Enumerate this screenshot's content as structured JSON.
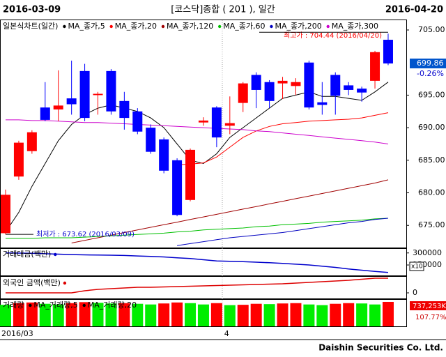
{
  "header": {
    "left": "2016-03-09",
    "title": "[코스닥]종합 ( 201 ), 일간",
    "right": "2016-04-20"
  },
  "footer": "Daishin Securities Co. Ltd.",
  "chart_data": [
    {
      "type": "candlestick",
      "title": "일본식차트(일간)",
      "categories": [
        "2016/03",
        null,
        null,
        null,
        null,
        null,
        null,
        null,
        null,
        null,
        null,
        null,
        null,
        null,
        null,
        null,
        null,
        "4",
        null,
        null,
        null,
        null,
        null,
        null,
        null,
        null,
        null,
        null,
        null,
        null
      ],
      "open": [
        673.8,
        682.5,
        686.4,
        693.1,
        692.8,
        694.5,
        698.7,
        695.0,
        698.7,
        694.1,
        692.5,
        690.0,
        688.2,
        685.0,
        678.9,
        690.8,
        693.1,
        690.3,
        693.8,
        698.1,
        697.0,
        696.8,
        696.4,
        700.0,
        693.9,
        698.1,
        696.5,
        696.0,
        697.2,
        703.5
      ],
      "high": [
        680.5,
        688.0,
        689.6,
        697.0,
        698.8,
        700.3,
        699.8,
        695.5,
        699.0,
        695.5,
        693.0,
        690.5,
        688.5,
        685.3,
        686.8,
        691.6,
        693.3,
        694.8,
        697.0,
        698.5,
        697.3,
        697.8,
        697.6,
        700.3,
        697.0,
        698.5,
        697.0,
        696.3,
        701.8,
        704.44
      ],
      "low": [
        673.62,
        682.0,
        686.0,
        691.0,
        691.0,
        692.0,
        691.0,
        692.0,
        692.0,
        689.7,
        689.0,
        686.0,
        683.0,
        676.4,
        678.7,
        690.3,
        687.0,
        689.0,
        692.4,
        693.0,
        693.0,
        694.4,
        695.0,
        692.8,
        692.0,
        692.0,
        695.0,
        694.0,
        696.0,
        699.6
      ],
      "close": [
        679.7,
        687.7,
        689.3,
        691.2,
        693.4,
        693.6,
        691.5,
        695.2,
        692.5,
        691.5,
        689.4,
        686.3,
        683.4,
        676.6,
        686.6,
        691.1,
        688.5,
        690.7,
        696.8,
        695.8,
        694.1,
        697.2,
        697.0,
        693.1,
        693.5,
        694.9,
        695.8,
        695.4,
        701.6,
        699.86
      ],
      "up_color": "#ff0000",
      "down_color": "#0000ff",
      "ylim": [
        671.6,
        706.5
      ],
      "yticks": [
        {
          "value": 675,
          "label": "675.00"
        },
        {
          "value": 680,
          "label": "680.00"
        },
        {
          "value": 685,
          "label": "685.00"
        },
        {
          "value": 690,
          "label": "690.00"
        },
        {
          "value": 695,
          "label": "695.00"
        },
        {
          "value": 705,
          "label": "705.00"
        }
      ],
      "series": [
        {
          "name": "MA_종가,5",
          "color": "#000000",
          "values": [
            674,
            677,
            681,
            684.5,
            688,
            690.5,
            692,
            693,
            693.5,
            693,
            692.5,
            691.5,
            690,
            687.5,
            685,
            684.5,
            686,
            688.5,
            690,
            691.5,
            693,
            694.5,
            695,
            695.5,
            694.8,
            694.8,
            694.5,
            694.2,
            695.5,
            697
          ]
        },
        {
          "name": "MA_종가,20",
          "color": "#ff0000",
          "values": [
            null,
            null,
            null,
            null,
            null,
            null,
            null,
            null,
            null,
            null,
            null,
            null,
            null,
            684.3,
            684.4,
            684.6,
            685.5,
            687,
            688.5,
            689.5,
            690.2,
            690.6,
            690.8,
            691.0,
            691.1,
            691.2,
            691.3,
            691.5,
            691.9,
            692.3
          ]
        },
        {
          "name": "MA_종가,120",
          "color": "#a00000",
          "values": [
            null,
            null,
            null,
            null,
            null,
            672.3,
            672.7,
            673.1,
            673.5,
            673.9,
            674.3,
            674.7,
            675.1,
            675.5,
            675.9,
            676.3,
            676.7,
            677.1,
            677.5,
            677.9,
            678.3,
            678.7,
            679.1,
            679.5,
            679.9,
            680.3,
            680.7,
            681.1,
            681.5,
            682.0
          ]
        },
        {
          "name": "MA_종가,60",
          "color": "#00c000",
          "values": [
            673.0,
            673.0,
            673.0,
            673.1,
            673.1,
            673.1,
            673.2,
            673.3,
            673.4,
            673.5,
            673.6,
            673.7,
            673.8,
            674.0,
            674.1,
            674.3,
            674.4,
            674.5,
            674.6,
            674.8,
            674.9,
            675.1,
            675.2,
            675.3,
            675.5,
            675.6,
            675.7,
            675.8,
            676.0,
            676.1
          ]
        },
        {
          "name": "MA_종가,200",
          "color": "#0000c0",
          "values": [
            null,
            null,
            null,
            null,
            null,
            null,
            null,
            null,
            null,
            null,
            null,
            null,
            null,
            671.9,
            672.2,
            672.5,
            672.8,
            673.1,
            673.3,
            673.5,
            673.7,
            673.9,
            674.2,
            674.5,
            674.8,
            675.1,
            675.4,
            675.6,
            675.9,
            676.1
          ]
        },
        {
          "name": "MA_종가,300",
          "color": "#cc00cc",
          "values": [
            691.2,
            691.2,
            691.1,
            691.1,
            691.0,
            690.9,
            690.8,
            690.8,
            690.7,
            690.6,
            690.5,
            690.4,
            690.3,
            690.2,
            690.1,
            690.0,
            689.9,
            689.8,
            689.7,
            689.5,
            689.4,
            689.2,
            689.0,
            688.8,
            688.6,
            688.4,
            688.2,
            688.0,
            687.8,
            687.5
          ]
        }
      ],
      "high_note": "최고가 : 704.44 (2016/04/20)",
      "low_note": "최저가 : 673.62 (2016/03/09)",
      "last_price": {
        "value": 699.86,
        "label": "699.86"
      },
      "change": "-0.26%"
    },
    {
      "type": "line",
      "title": "거래대금(백만)",
      "unit_label": "x10",
      "ylim": [
        20000,
        350000
      ],
      "yticks": [
        300000,
        150000
      ],
      "series": [
        {
          "color": "#0000cc",
          "values": [
            300000,
            298000,
            295000,
            290000,
            285000,
            280000,
            276000,
            274000,
            272000,
            268000,
            262000,
            256000,
            250000,
            240000,
            230000,
            215000,
            200000,
            196000,
            192000,
            185000,
            178000,
            170000,
            160000,
            150000,
            135000,
            120000,
            100000,
            85000,
            70000,
            57000
          ]
        }
      ]
    },
    {
      "type": "line",
      "title": "외국인 금액(백만)",
      "ylim": [
        -8000,
        22000
      ],
      "yticks": [
        0
      ],
      "series": [
        {
          "color": "#dd0000",
          "values": [
            0,
            0,
            0,
            0,
            0,
            0,
            3000,
            5000,
            6000,
            7000,
            8000,
            8000,
            8500,
            9000,
            9500,
            10000,
            10500,
            11000,
            11500,
            12000,
            12500,
            13000,
            14000,
            15000,
            16000,
            17000,
            18000,
            19500,
            21000,
            21000
          ]
        }
      ]
    },
    {
      "type": "bar",
      "title": "거래량",
      "legend": [
        "MA_거래량,5",
        "MA_거래량,20"
      ],
      "ylim": [
        0,
        800000
      ],
      "up_color": "#ff0000",
      "down_color": "#00ee00",
      "values": [
        650000,
        700000,
        720000,
        680000,
        660000,
        700000,
        730000,
        710000,
        690000,
        700000,
        680000,
        660000,
        690000,
        720000,
        700000,
        660000,
        700000,
        640000,
        650000,
        680000,
        670000,
        690000,
        700000,
        660000,
        640000,
        680000,
        700000,
        690000,
        660000,
        737253
      ],
      "last_label": "737,253K",
      "ratio_label": "107.77%"
    }
  ]
}
